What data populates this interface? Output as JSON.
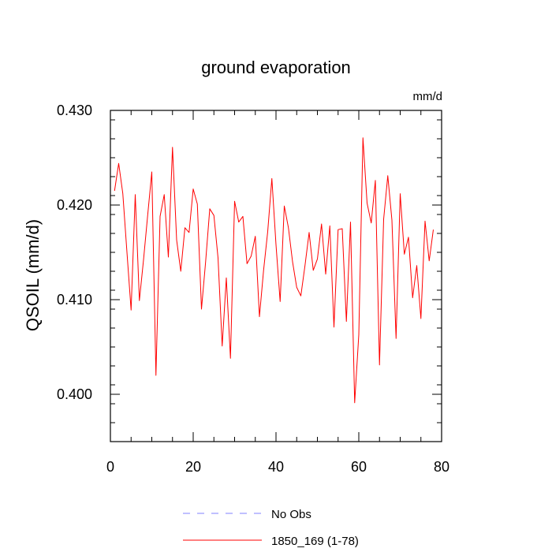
{
  "chart_data": {
    "type": "line",
    "title": "ground evaporation",
    "units": "mm/d",
    "ylabel": "QSOIL  (mm/d)",
    "xlabel": "",
    "xlim": [
      0,
      80
    ],
    "ylim": [
      0.395,
      0.43
    ],
    "x_ticks": [
      0,
      20,
      40,
      60,
      80
    ],
    "x_tick_labels": [
      "0",
      "20",
      "40",
      "60",
      "80"
    ],
    "y_ticks": [
      0.4,
      0.41,
      0.42,
      0.43
    ],
    "y_tick_labels": [
      "0.400",
      "0.410",
      "0.420",
      "0.430"
    ],
    "grid": false,
    "legend_position": "bottom",
    "series": [
      {
        "name": "No Obs",
        "color": "#8080ff",
        "style": "dashed",
        "x": [],
        "values": []
      },
      {
        "name": "1850_169 (1-78)",
        "color": "#ff0000",
        "style": "solid",
        "x": [
          1,
          2,
          3,
          4,
          5,
          6,
          7,
          8,
          9,
          10,
          11,
          12,
          13,
          14,
          15,
          16,
          17,
          18,
          19,
          20,
          21,
          22,
          23,
          24,
          25,
          26,
          27,
          28,
          29,
          30,
          31,
          32,
          33,
          34,
          35,
          36,
          37,
          38,
          39,
          40,
          41,
          42,
          43,
          44,
          45,
          46,
          47,
          48,
          49,
          50,
          51,
          52,
          53,
          54,
          55,
          56,
          57,
          58,
          59,
          60,
          61,
          62,
          63,
          64,
          65,
          66,
          67,
          68,
          69,
          70,
          71,
          72,
          73,
          74,
          75,
          76,
          77,
          78
        ],
        "values": [
          0.4215,
          0.4244,
          0.4212,
          0.415,
          0.4089,
          0.4211,
          0.4099,
          0.4142,
          0.4189,
          0.4235,
          0.402,
          0.4188,
          0.4211,
          0.4145,
          0.4261,
          0.4163,
          0.413,
          0.4176,
          0.4171,
          0.4217,
          0.4201,
          0.409,
          0.414,
          0.4196,
          0.4189,
          0.4144,
          0.4051,
          0.4123,
          0.4038,
          0.4204,
          0.4182,
          0.4188,
          0.4138,
          0.4146,
          0.4167,
          0.4082,
          0.4131,
          0.4172,
          0.4228,
          0.4158,
          0.4098,
          0.4199,
          0.4176,
          0.414,
          0.4113,
          0.4104,
          0.4136,
          0.4171,
          0.4131,
          0.4143,
          0.418,
          0.4127,
          0.4178,
          0.4071,
          0.4174,
          0.4175,
          0.4077,
          0.4182,
          0.3991,
          0.4063,
          0.4271,
          0.4202,
          0.4181,
          0.4226,
          0.4031,
          0.4185,
          0.4231,
          0.4184,
          0.4059,
          0.4212,
          0.4148,
          0.4166,
          0.4102,
          0.4136,
          0.408,
          0.4183,
          0.4141,
          0.4174
        ]
      }
    ]
  }
}
